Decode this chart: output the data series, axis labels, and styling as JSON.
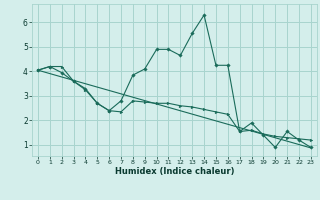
{
  "xlabel": "Humidex (Indice chaleur)",
  "bg_color": "#d4eeeb",
  "grid_color": "#a8d4ce",
  "line_color": "#1a6b5a",
  "x_ticks": [
    0,
    1,
    2,
    3,
    4,
    5,
    6,
    7,
    8,
    9,
    10,
    11,
    12,
    13,
    14,
    15,
    16,
    17,
    18,
    19,
    20,
    21,
    22,
    23
  ],
  "y_ticks": [
    1,
    2,
    3,
    4,
    5,
    6
  ],
  "xlim": [
    -0.5,
    23.5
  ],
  "ylim": [
    0.55,
    6.75
  ],
  "line1_x": [
    0,
    1,
    2,
    3,
    4,
    5,
    6,
    7,
    8,
    9,
    10,
    11,
    12,
    13,
    14,
    15,
    16,
    17,
    18,
    19,
    20,
    21,
    22,
    23
  ],
  "line1_y": [
    4.05,
    4.2,
    4.2,
    3.6,
    3.25,
    2.7,
    2.4,
    2.35,
    2.8,
    2.75,
    2.7,
    2.7,
    2.6,
    2.55,
    2.45,
    2.35,
    2.25,
    1.55,
    1.6,
    1.45,
    1.35,
    1.3,
    1.25,
    1.2
  ],
  "line2_x": [
    0,
    1,
    2,
    3,
    4,
    5,
    6,
    7,
    8,
    9,
    10,
    11,
    12,
    13,
    14,
    15,
    16,
    17,
    18,
    19,
    20,
    21,
    22,
    23
  ],
  "line2_y": [
    4.05,
    4.2,
    3.95,
    3.6,
    3.3,
    2.7,
    2.4,
    2.8,
    3.85,
    4.1,
    4.9,
    4.9,
    4.65,
    5.55,
    6.3,
    4.25,
    4.25,
    1.55,
    1.9,
    1.4,
    0.9,
    1.55,
    1.2,
    0.9
  ],
  "line3_x": [
    0,
    23
  ],
  "line3_y": [
    4.05,
    0.88
  ]
}
